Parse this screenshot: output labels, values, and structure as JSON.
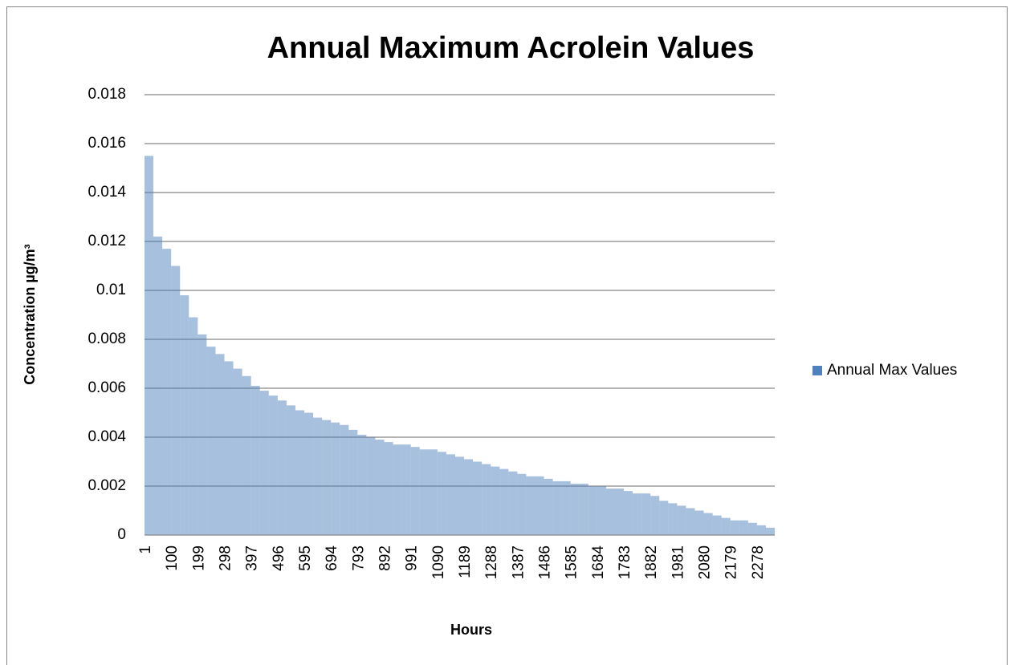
{
  "chart_data": {
    "type": "bar",
    "title": "Annual Maximum Acrolein Values",
    "x_label": "Hours",
    "y_label": "Concentration µg/m³",
    "series": [
      {
        "name": "Annual Max Values",
        "color": "#4f81bd",
        "x": [
          1,
          34,
          67,
          100,
          133,
          166,
          199,
          232,
          265,
          298,
          331,
          364,
          397,
          430,
          463,
          496,
          529,
          562,
          595,
          628,
          661,
          694,
          727,
          760,
          793,
          826,
          859,
          892,
          925,
          958,
          991,
          1024,
          1057,
          1090,
          1123,
          1156,
          1189,
          1222,
          1255,
          1288,
          1321,
          1354,
          1387,
          1420,
          1453,
          1486,
          1519,
          1552,
          1585,
          1618,
          1651,
          1684,
          1717,
          1750,
          1783,
          1816,
          1849,
          1882,
          1915,
          1948,
          1981,
          2014,
          2047,
          2080,
          2113,
          2146,
          2179,
          2212,
          2245,
          2278,
          2311
        ],
        "values": [
          0.0155,
          0.0122,
          0.0117,
          0.011,
          0.0098,
          0.0089,
          0.0082,
          0.0077,
          0.0074,
          0.0071,
          0.0068,
          0.0065,
          0.0061,
          0.0059,
          0.0057,
          0.0055,
          0.0053,
          0.0051,
          0.005,
          0.0048,
          0.0047,
          0.0046,
          0.0045,
          0.0043,
          0.0041,
          0.004,
          0.0039,
          0.0038,
          0.0037,
          0.0037,
          0.0036,
          0.0035,
          0.0035,
          0.0034,
          0.0033,
          0.0032,
          0.0031,
          0.003,
          0.0029,
          0.0028,
          0.0027,
          0.0026,
          0.0025,
          0.0024,
          0.0024,
          0.0023,
          0.0022,
          0.0022,
          0.0021,
          0.0021,
          0.002,
          0.002,
          0.0019,
          0.0019,
          0.0018,
          0.0017,
          0.0017,
          0.0016,
          0.0014,
          0.0013,
          0.0012,
          0.0011,
          0.001,
          0.0009,
          0.0008,
          0.0007,
          0.0006,
          0.0006,
          0.0005,
          0.0004,
          0.0003
        ]
      }
    ],
    "xlim": [
      1,
      2344
    ],
    "xticks": [
      1,
      100,
      199,
      298,
      397,
      496,
      595,
      694,
      793,
      892,
      991,
      1090,
      1189,
      1288,
      1387,
      1486,
      1585,
      1684,
      1783,
      1882,
      1981,
      2080,
      2179,
      2278
    ],
    "ylim": [
      0,
      0.018
    ],
    "yticks": [
      0,
      0.002,
      0.004,
      0.006,
      0.008,
      0.01,
      0.012,
      0.014,
      0.016,
      0.018
    ],
    "grid": true,
    "legend": "right"
  }
}
